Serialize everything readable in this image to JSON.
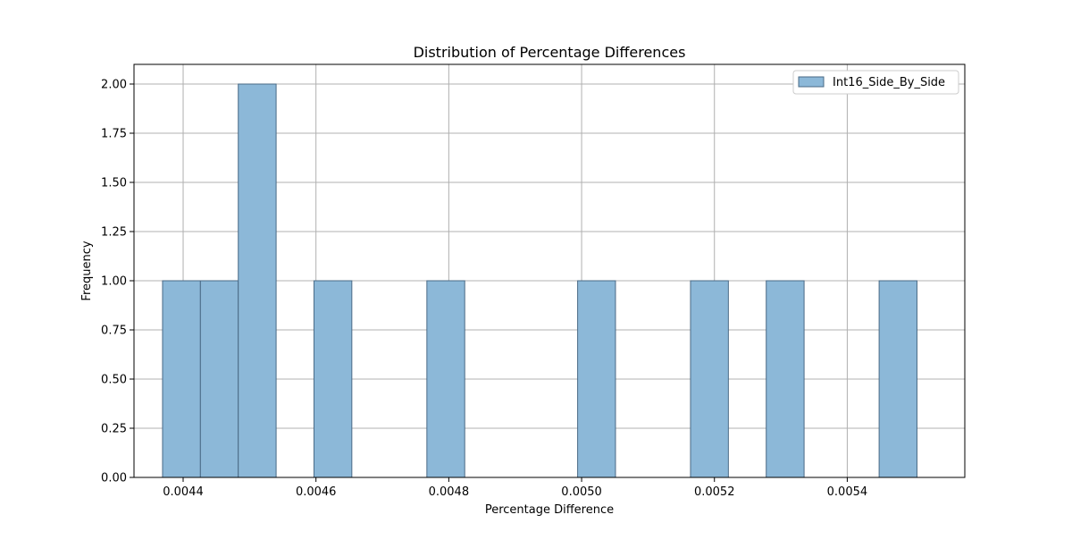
{
  "chart_data": {
    "type": "bar",
    "title": "Distribution of Percentage Differences",
    "xlabel": "Percentage Difference",
    "ylabel": "Frequency",
    "xlim": [
      0.004326,
      0.005577
    ],
    "ylim": [
      0,
      2.1
    ],
    "xticks": [
      "0.0044",
      "0.0046",
      "0.0048",
      "0.0050",
      "0.0052",
      "0.0054"
    ],
    "yticks": [
      "0.00",
      "0.25",
      "0.50",
      "0.75",
      "1.00",
      "1.25",
      "1.50",
      "1.75",
      "2.00"
    ],
    "grid": true,
    "legend_position": "top-right",
    "series": [
      {
        "name": "Int16_Side_By_Side",
        "color": "#8cb8d8",
        "edge_color": "#4a6a86",
        "bins": [
          {
            "x0": 0.004369,
            "x1": 0.004426,
            "count": 1
          },
          {
            "x0": 0.004426,
            "x1": 0.004483,
            "count": 1
          },
          {
            "x0": 0.004483,
            "x1": 0.00454,
            "count": 2
          },
          {
            "x0": 0.004597,
            "x1": 0.004654,
            "count": 1
          },
          {
            "x0": 0.004767,
            "x1": 0.004824,
            "count": 1
          },
          {
            "x0": 0.004994,
            "x1": 0.005051,
            "count": 1
          },
          {
            "x0": 0.005164,
            "x1": 0.005221,
            "count": 1
          },
          {
            "x0": 0.005278,
            "x1": 0.005335,
            "count": 1
          },
          {
            "x0": 0.005448,
            "x1": 0.005505,
            "count": 1
          }
        ]
      }
    ]
  }
}
